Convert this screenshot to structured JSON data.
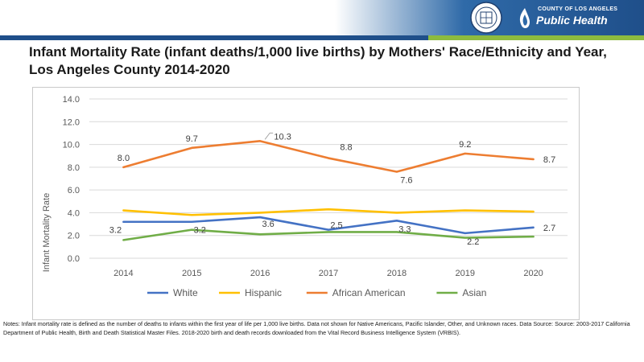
{
  "header": {
    "seal_text": "COUNTY OF LOS ANGELES",
    "logo_county": "COUNTY OF LOS ANGELES",
    "logo_title": "Public Health"
  },
  "colors": {
    "header_blue": "#1f4f8a",
    "header_green": "#8dbb3f"
  },
  "notes": "Notes: Infant mortality rate is defined as the number of deaths to infants within the first year of life per 1,000 live births. Data not shown for Native Americans, Pacific Islander, Other, and Unknown races. Data Source: Source: 2003-2017 California Department of Public Health, Birth and Death Statistical Master Files. 2018-2020 birth and death records downloaded from the Vital Record Business Intelligence System (VRBIS).",
  "chart_data": {
    "type": "line",
    "title": "Infant Mortality Rate (infant deaths/1,000 live births) by Mothers' Race/Ethnicity and Year, Los Angeles County 2014-2020",
    "xlabel": "",
    "ylabel": "Infant Mortality Rate",
    "categories": [
      "2014",
      "2015",
      "2016",
      "2017",
      "2018",
      "2019",
      "2020"
    ],
    "ylim": [
      0,
      14
    ],
    "yticks": [
      "0.0",
      "2.0",
      "4.0",
      "6.0",
      "8.0",
      "10.0",
      "12.0",
      "14.0"
    ],
    "grid": true,
    "legend": "bottom",
    "series": [
      {
        "name": "White",
        "color": "#4472c4",
        "values": [
          3.2,
          3.2,
          3.6,
          2.5,
          3.3,
          2.2,
          2.7
        ],
        "labels": [
          "3.2",
          "3.2",
          "3.6",
          "2.5",
          "3.3",
          "2.2",
          "2.7"
        ]
      },
      {
        "name": "Hispanic",
        "color": "#ffc000",
        "values": [
          4.2,
          3.8,
          4.0,
          4.3,
          4.0,
          4.2,
          4.1
        ],
        "labels": []
      },
      {
        "name": "African American",
        "color": "#ed7d31",
        "values": [
          8.0,
          9.7,
          10.3,
          8.8,
          7.6,
          9.2,
          8.7
        ],
        "labels": [
          "8.0",
          "9.7",
          "10.3",
          "8.8",
          "7.6",
          "9.2",
          "8.7"
        ]
      },
      {
        "name": "Asian",
        "color": "#70ad47",
        "values": [
          1.6,
          2.5,
          2.1,
          2.3,
          2.3,
          1.8,
          1.9
        ],
        "labels": []
      }
    ]
  }
}
